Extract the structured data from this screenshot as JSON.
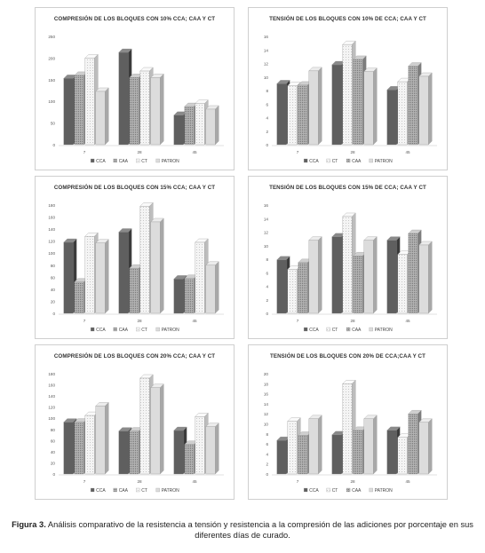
{
  "caption": {
    "label": "Figura 3.",
    "text": "Análisis comparativo de la resistencia a tensión y resistencia a la compresión de las adiciones por porcentaje en sus diferentes días de curado."
  },
  "chart_data": [
    {
      "type": "bar",
      "title": "COMPRESIÓN DE LOS BLOQUES CON 10% CCA; CAA Y CT",
      "categories": [
        "7",
        "28",
        "45"
      ],
      "ylim": [
        0,
        250
      ],
      "yticks": [
        0,
        50,
        100,
        150,
        200,
        250
      ],
      "grid": false,
      "legend": "bottom",
      "series": [
        {
          "name": "CCA",
          "values": [
            153,
            213,
            68
          ]
        },
        {
          "name": "CAA",
          "values": [
            160,
            155,
            88
          ]
        },
        {
          "name": "CT",
          "values": [
            200,
            170,
            95
          ]
        },
        {
          "name": "PATRON",
          "values": [
            123,
            155,
            82
          ]
        }
      ]
    },
    {
      "type": "bar",
      "title": "TENSIÓN DE LOS BLOQUES CON 10% DE CCA; CAA Y CT",
      "categories": [
        "7",
        "28",
        "45"
      ],
      "ylim": [
        0,
        16
      ],
      "yticks": [
        0,
        2,
        4,
        6,
        8,
        10,
        12,
        14,
        16
      ],
      "grid": false,
      "legend": "bottom",
      "series": [
        {
          "name": "CCA",
          "values": [
            9.0,
            11.8,
            8.1
          ]
        },
        {
          "name": "CT",
          "values": [
            8.7,
            14.8,
            9.3
          ]
        },
        {
          "name": "CAA",
          "values": [
            8.8,
            12.6,
            11.6
          ]
        },
        {
          "name": "PATRON",
          "values": [
            10.9,
            10.8,
            10.1
          ]
        }
      ]
    },
    {
      "type": "bar",
      "title": "COMPRESIÓN DE LOS BLOQUES CON 15% CCA; CAA Y CT",
      "categories": [
        "7",
        "28",
        "45"
      ],
      "ylim": [
        0,
        180
      ],
      "yticks": [
        0,
        20,
        40,
        60,
        80,
        100,
        120,
        140,
        160,
        180
      ],
      "grid": false,
      "legend": "bottom",
      "series": [
        {
          "name": "CCA",
          "values": [
            118,
            135,
            57
          ]
        },
        {
          "name": "CAA",
          "values": [
            52,
            75,
            58
          ]
        },
        {
          "name": "CT",
          "values": [
            128,
            178,
            118
          ]
        },
        {
          "name": "PATRON",
          "values": [
            117,
            152,
            80
          ]
        }
      ]
    },
    {
      "type": "bar",
      "title": "TENSIÓN DE LOS BLOQUES CON 15% DE CCA; CAA Y CT",
      "categories": [
        "7",
        "28",
        "45"
      ],
      "ylim": [
        0,
        16
      ],
      "yticks": [
        0,
        2,
        4,
        6,
        8,
        10,
        12,
        14,
        16
      ],
      "grid": false,
      "legend": "bottom",
      "series": [
        {
          "name": "CCA",
          "values": [
            7.9,
            11.3,
            10.8
          ]
        },
        {
          "name": "CT",
          "values": [
            6.5,
            14.3,
            8.7
          ]
        },
        {
          "name": "CAA",
          "values": [
            7.5,
            8.5,
            11.8
          ]
        },
        {
          "name": "PATRON",
          "values": [
            10.8,
            10.8,
            10.1
          ]
        }
      ]
    },
    {
      "type": "bar",
      "title": "COMPRESIÓN DE LOS BLOQUES CON 20% CCA; CAA Y CT",
      "categories": [
        "7",
        "28",
        "45"
      ],
      "ylim": [
        0,
        180
      ],
      "yticks": [
        0,
        20,
        40,
        60,
        80,
        100,
        120,
        140,
        160,
        180
      ],
      "grid": false,
      "legend": "bottom",
      "series": [
        {
          "name": "CCA",
          "values": [
            93,
            77,
            78
          ]
        },
        {
          "name": "CAA",
          "values": [
            93,
            77,
            53
          ]
        },
        {
          "name": "CT",
          "values": [
            105,
            172,
            103
          ]
        },
        {
          "name": "PATRON",
          "values": [
            122,
            155,
            85
          ]
        }
      ]
    },
    {
      "type": "bar",
      "title": "TENSIÓN DE LOS BLOQUES CON 20% DE CCA;CAA Y CT",
      "categories": [
        "7",
        "28",
        "45"
      ],
      "ylim": [
        0,
        20
      ],
      "yticks": [
        0,
        2,
        4,
        6,
        8,
        10,
        12,
        14,
        16,
        18,
        20
      ],
      "grid": false,
      "legend": "bottom",
      "series": [
        {
          "name": "CCA",
          "values": [
            6.7,
            7.8,
            8.7
          ]
        },
        {
          "name": "CT",
          "values": [
            10.5,
            18.0,
            7.3
          ]
        },
        {
          "name": "CAA",
          "values": [
            7.7,
            8.7,
            12.0
          ]
        },
        {
          "name": "PATRON",
          "values": [
            11.0,
            11.0,
            10.3
          ]
        }
      ]
    }
  ]
}
